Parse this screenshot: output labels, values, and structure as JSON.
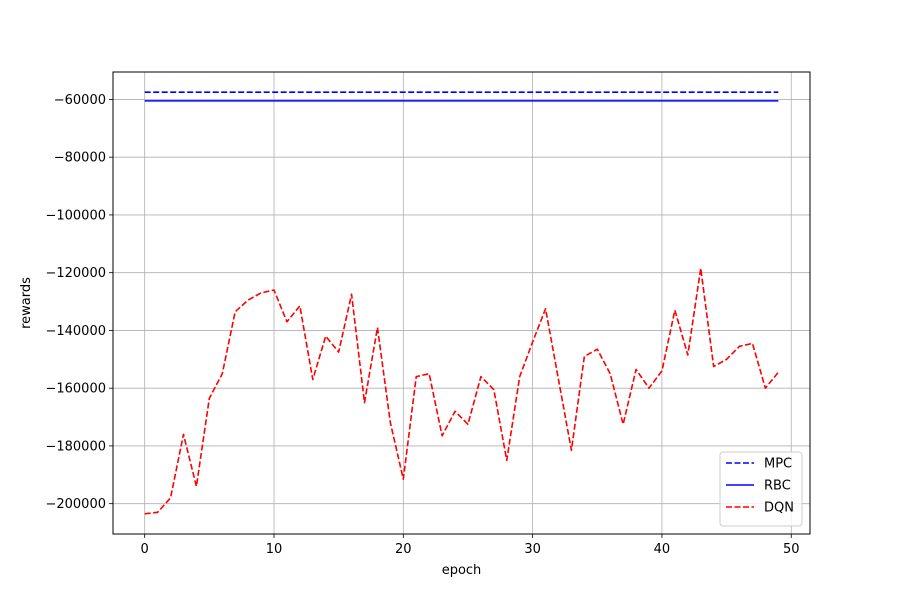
{
  "chart_data": {
    "type": "line",
    "title": "",
    "xlabel": "epoch",
    "ylabel": "rewards",
    "xlim": [
      -2.45,
      51.45
    ],
    "ylim": [
      -210500,
      -50500
    ],
    "xticks": [
      0,
      10,
      20,
      30,
      40,
      50
    ],
    "xtick_labels": [
      "0",
      "10",
      "20",
      "30",
      "40",
      "50"
    ],
    "yticks": [
      -60000,
      -80000,
      -100000,
      -120000,
      -140000,
      -160000,
      -180000,
      -200000
    ],
    "ytick_labels": [
      "−60000",
      "−80000",
      "−100000",
      "−120000",
      "−140000",
      "−160000",
      "−180000",
      "−200000"
    ],
    "grid": true,
    "legend": {
      "placement": "lower-right"
    },
    "x": [
      0,
      1,
      2,
      3,
      4,
      5,
      6,
      7,
      8,
      9,
      10,
      11,
      12,
      13,
      14,
      15,
      16,
      17,
      18,
      19,
      20,
      21,
      22,
      23,
      24,
      25,
      26,
      27,
      28,
      29,
      30,
      31,
      32,
      33,
      34,
      35,
      36,
      37,
      38,
      39,
      40,
      41,
      42,
      43,
      44,
      45,
      46,
      47,
      48,
      49
    ],
    "series": [
      {
        "name": "MPC",
        "color": "#0000ff",
        "style": "dashed",
        "values": [
          -57500,
          -57500,
          -57500,
          -57500,
          -57500,
          -57500,
          -57500,
          -57500,
          -57500,
          -57500,
          -57500,
          -57500,
          -57500,
          -57500,
          -57500,
          -57500,
          -57500,
          -57500,
          -57500,
          -57500,
          -57500,
          -57500,
          -57500,
          -57500,
          -57500,
          -57500,
          -57500,
          -57500,
          -57500,
          -57500,
          -57500,
          -57500,
          -57500,
          -57500,
          -57500,
          -57500,
          -57500,
          -57500,
          -57500,
          -57500,
          -57500,
          -57500,
          -57500,
          -57500,
          -57500,
          -57500,
          -57500,
          -57500,
          -57500,
          -57500
        ]
      },
      {
        "name": "RBC",
        "color": "#0000ff",
        "style": "solid",
        "values": [
          -60500,
          -60500,
          -60500,
          -60500,
          -60500,
          -60500,
          -60500,
          -60500,
          -60500,
          -60500,
          -60500,
          -60500,
          -60500,
          -60500,
          -60500,
          -60500,
          -60500,
          -60500,
          -60500,
          -60500,
          -60500,
          -60500,
          -60500,
          -60500,
          -60500,
          -60500,
          -60500,
          -60500,
          -60500,
          -60500,
          -60500,
          -60500,
          -60500,
          -60500,
          -60500,
          -60500,
          -60500,
          -60500,
          -60500,
          -60500,
          -60500,
          -60500,
          -60500,
          -60500,
          -60500,
          -60500,
          -60500,
          -60500,
          -60500,
          -60500
        ]
      },
      {
        "name": "DQN",
        "color": "#ff0000",
        "style": "dashed",
        "values": [
          -203500,
          -203000,
          -198000,
          -176000,
          -194000,
          -163500,
          -155000,
          -133500,
          -129500,
          -127000,
          -126000,
          -137000,
          -131500,
          -157000,
          -142000,
          -147500,
          -127500,
          -165000,
          -139000,
          -172000,
          -191500,
          -156000,
          -155000,
          -176500,
          -168000,
          -172500,
          -156000,
          -160500,
          -185000,
          -156000,
          -144000,
          -132500,
          -157000,
          -181500,
          -149000,
          -146500,
          -155000,
          -172500,
          -153500,
          -160000,
          -154000,
          -133000,
          -148500,
          -118500,
          -152500,
          -150000,
          -145500,
          -144500,
          -160000,
          -154500
        ]
      }
    ]
  }
}
